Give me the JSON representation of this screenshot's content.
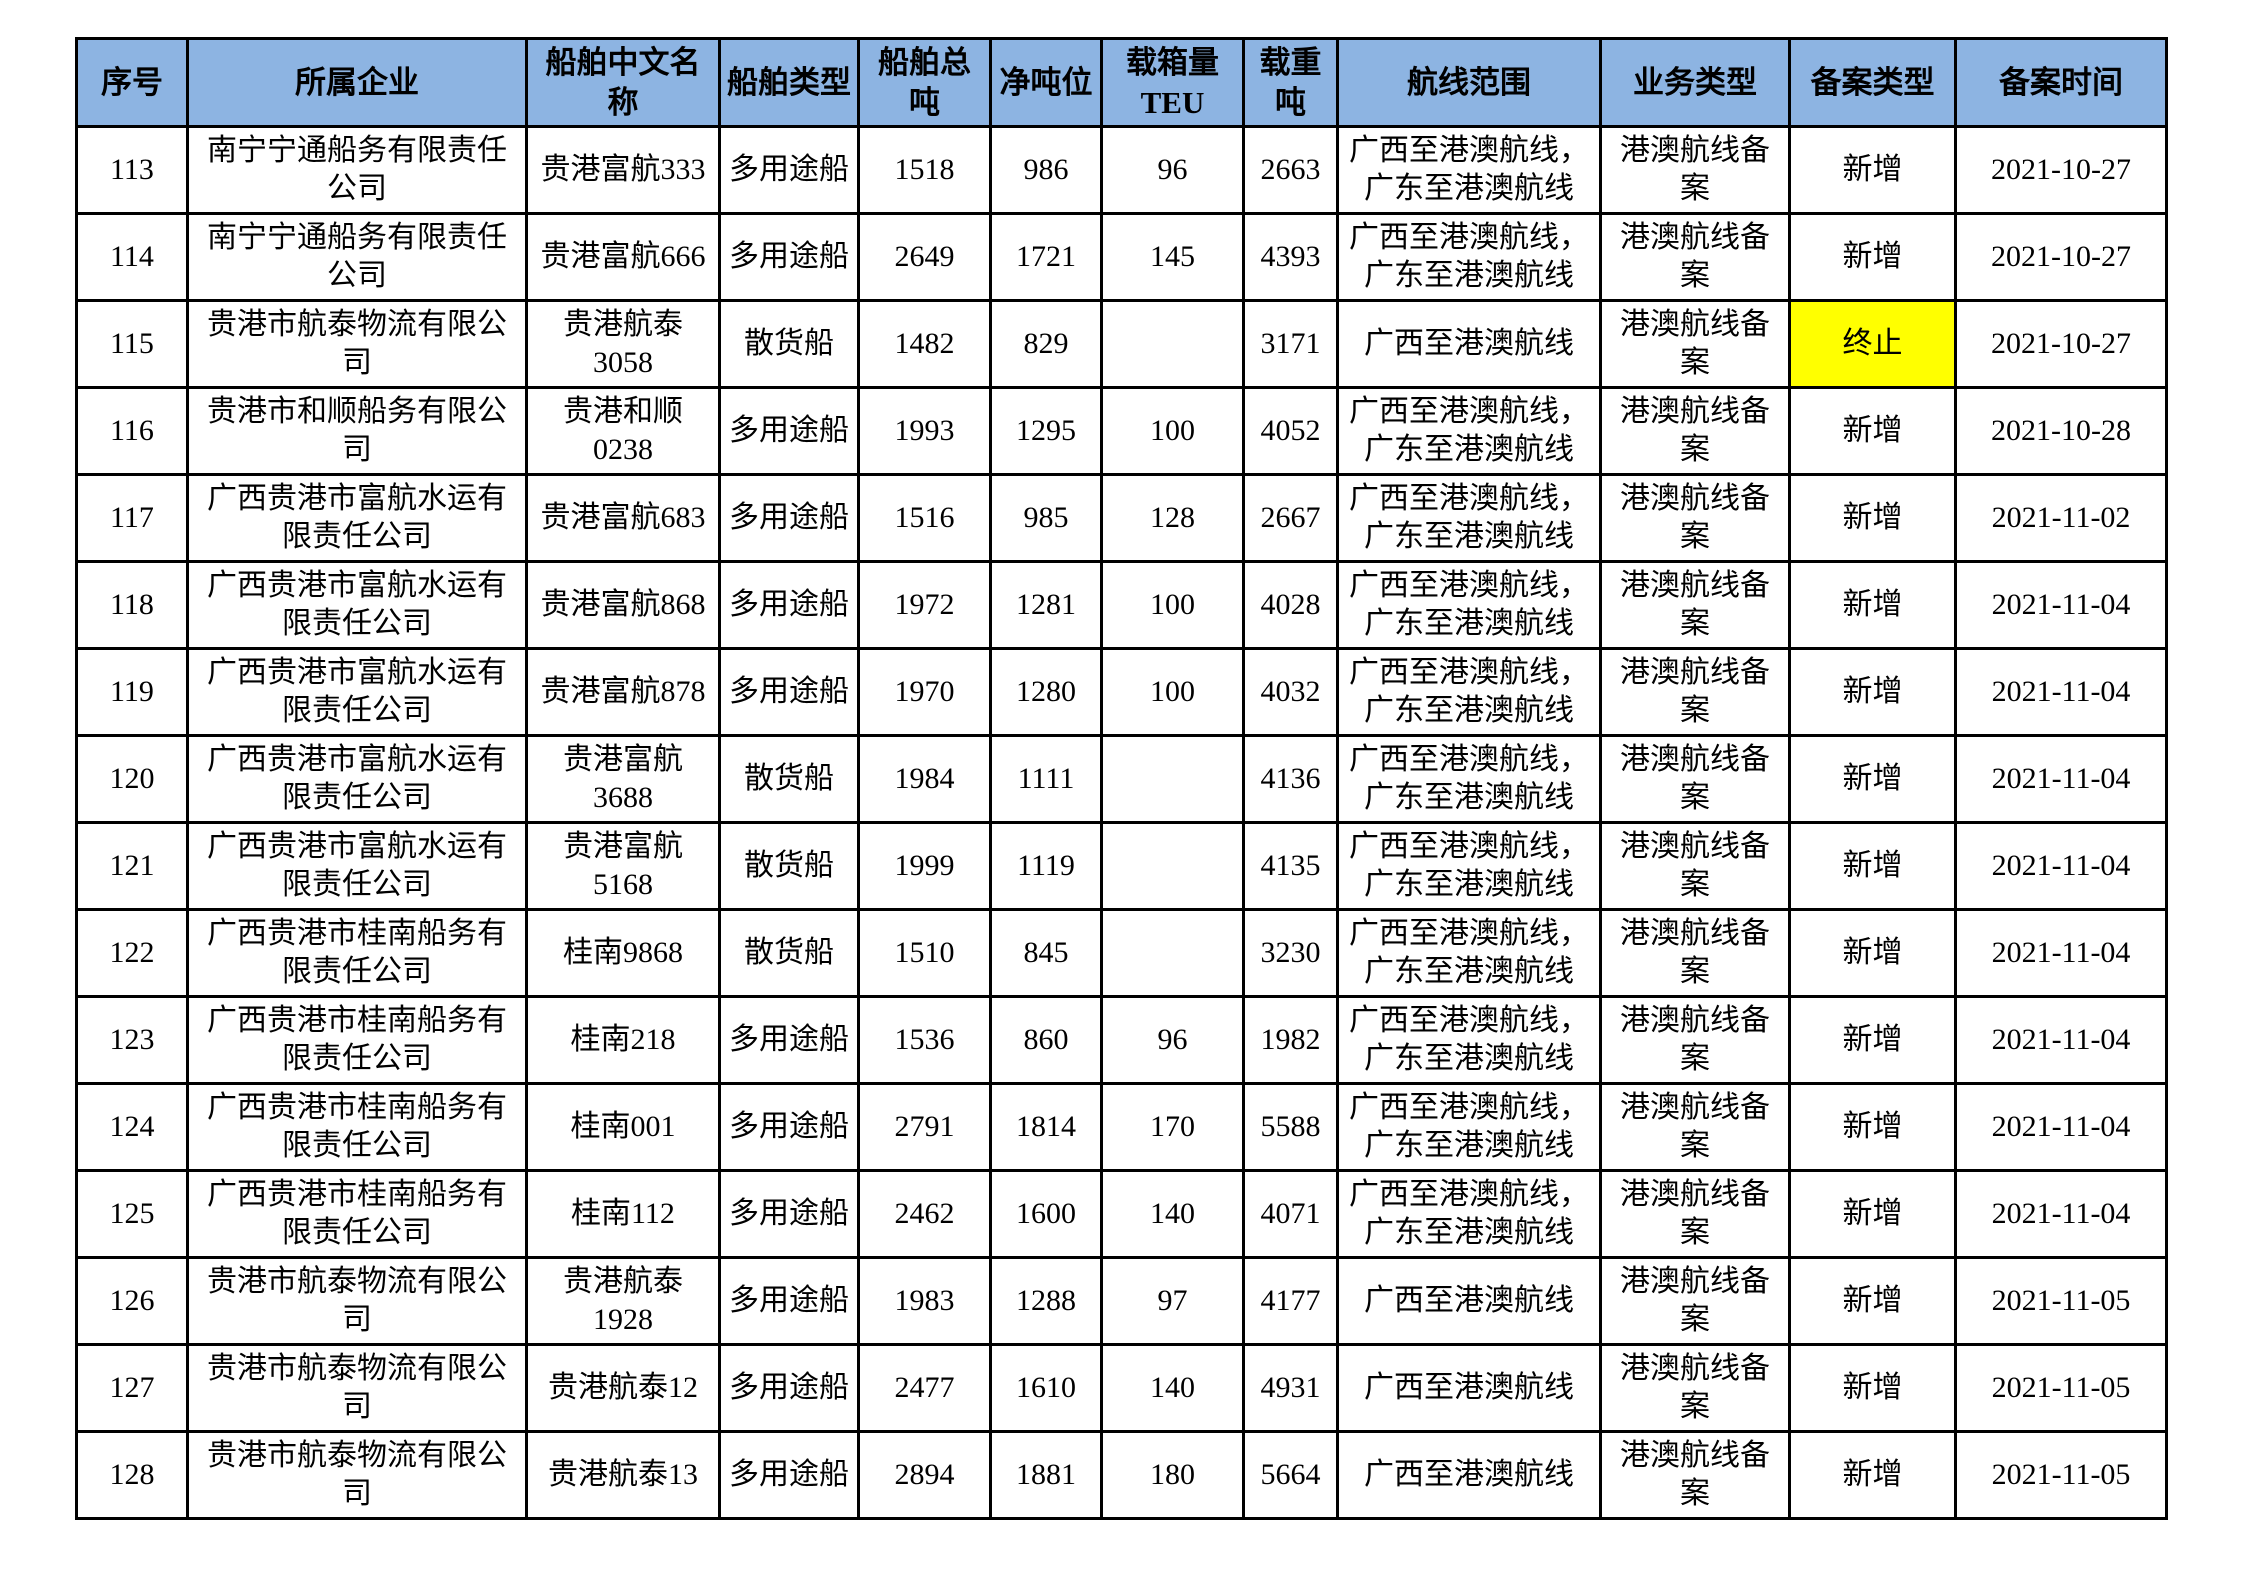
{
  "colors": {
    "header_bg": "#8DB4E2",
    "highlight_bg": "#FFFF00",
    "border": "#000000",
    "text": "#000000"
  },
  "table": {
    "columns": [
      {
        "key": "seq",
        "label": "序号"
      },
      {
        "key": "company",
        "label": "所属企业"
      },
      {
        "key": "ship_name",
        "label": "船舶中文名称"
      },
      {
        "key": "ship_type",
        "label": "船舶类型"
      },
      {
        "key": "gross_tonnage",
        "label": "船舶总吨"
      },
      {
        "key": "net_tonnage",
        "label": "净吨位"
      },
      {
        "key": "teu",
        "label": "载箱量TEU"
      },
      {
        "key": "dwt",
        "label": "载重吨"
      },
      {
        "key": "route",
        "label": "航线范围"
      },
      {
        "key": "business_type",
        "label": "业务类型"
      },
      {
        "key": "filing_type",
        "label": "备案类型"
      },
      {
        "key": "filing_date",
        "label": "备案时间"
      }
    ],
    "rows": [
      {
        "seq": "113",
        "company": "南宁宁通船务有限责任公司",
        "ship_name": "贵港富航333",
        "ship_type": "多用途船",
        "gross_tonnage": "1518",
        "net_tonnage": "986",
        "teu": "96",
        "dwt": "2663",
        "route": "广西至港澳航线，\n广东至港澳航线",
        "business_type": "港澳航线备案",
        "filing_type": "新增",
        "filing_type_highlight": false,
        "filing_date": "2021-10-27"
      },
      {
        "seq": "114",
        "company": "南宁宁通船务有限责任公司",
        "ship_name": "贵港富航666",
        "ship_type": "多用途船",
        "gross_tonnage": "2649",
        "net_tonnage": "1721",
        "teu": "145",
        "dwt": "4393",
        "route": "广西至港澳航线，\n广东至港澳航线",
        "business_type": "港澳航线备案",
        "filing_type": "新增",
        "filing_type_highlight": false,
        "filing_date": "2021-10-27"
      },
      {
        "seq": "115",
        "company": "贵港市航泰物流有限公司",
        "ship_name": "贵港航泰3058",
        "ship_type": "散货船",
        "gross_tonnage": "1482",
        "net_tonnage": "829",
        "teu": "",
        "dwt": "3171",
        "route": "广西至港澳航线",
        "business_type": "港澳航线备案",
        "filing_type": "终止",
        "filing_type_highlight": true,
        "filing_date": "2021-10-27"
      },
      {
        "seq": "116",
        "company": "贵港市和顺船务有限公司",
        "ship_name": "贵港和顺0238",
        "ship_type": "多用途船",
        "gross_tonnage": "1993",
        "net_tonnage": "1295",
        "teu": "100",
        "dwt": "4052",
        "route": "广西至港澳航线，\n广东至港澳航线",
        "business_type": "港澳航线备案",
        "filing_type": "新增",
        "filing_type_highlight": false,
        "filing_date": "2021-10-28"
      },
      {
        "seq": "117",
        "company": "广西贵港市富航水运有限责任公司",
        "ship_name": "贵港富航683",
        "ship_type": "多用途船",
        "gross_tonnage": "1516",
        "net_tonnage": "985",
        "teu": "128",
        "dwt": "2667",
        "route": "广西至港澳航线，\n广东至港澳航线",
        "business_type": "港澳航线备案",
        "filing_type": "新增",
        "filing_type_highlight": false,
        "filing_date": "2021-11-02"
      },
      {
        "seq": "118",
        "company": "广西贵港市富航水运有限责任公司",
        "ship_name": "贵港富航868",
        "ship_type": "多用途船",
        "gross_tonnage": "1972",
        "net_tonnage": "1281",
        "teu": "100",
        "dwt": "4028",
        "route": "广西至港澳航线，\n广东至港澳航线",
        "business_type": "港澳航线备案",
        "filing_type": "新增",
        "filing_type_highlight": false,
        "filing_date": "2021-11-04"
      },
      {
        "seq": "119",
        "company": "广西贵港市富航水运有限责任公司",
        "ship_name": "贵港富航878",
        "ship_type": "多用途船",
        "gross_tonnage": "1970",
        "net_tonnage": "1280",
        "teu": "100",
        "dwt": "4032",
        "route": "广西至港澳航线，\n广东至港澳航线",
        "business_type": "港澳航线备案",
        "filing_type": "新增",
        "filing_type_highlight": false,
        "filing_date": "2021-11-04"
      },
      {
        "seq": "120",
        "company": "广西贵港市富航水运有限责任公司",
        "ship_name": "贵港富航3688",
        "ship_type": "散货船",
        "gross_tonnage": "1984",
        "net_tonnage": "1111",
        "teu": "",
        "dwt": "4136",
        "route": "广西至港澳航线，\n广东至港澳航线",
        "business_type": "港澳航线备案",
        "filing_type": "新增",
        "filing_type_highlight": false,
        "filing_date": "2021-11-04"
      },
      {
        "seq": "121",
        "company": "广西贵港市富航水运有限责任公司",
        "ship_name": "贵港富航5168",
        "ship_type": "散货船",
        "gross_tonnage": "1999",
        "net_tonnage": "1119",
        "teu": "",
        "dwt": "4135",
        "route": "广西至港澳航线，\n广东至港澳航线",
        "business_type": "港澳航线备案",
        "filing_type": "新增",
        "filing_type_highlight": false,
        "filing_date": "2021-11-04"
      },
      {
        "seq": "122",
        "company": "广西贵港市桂南船务有限责任公司",
        "ship_name": "桂南9868",
        "ship_type": "散货船",
        "gross_tonnage": "1510",
        "net_tonnage": "845",
        "teu": "",
        "dwt": "3230",
        "route": "广西至港澳航线，\n广东至港澳航线",
        "business_type": "港澳航线备案",
        "filing_type": "新增",
        "filing_type_highlight": false,
        "filing_date": "2021-11-04"
      },
      {
        "seq": "123",
        "company": "广西贵港市桂南船务有限责任公司",
        "ship_name": "桂南218",
        "ship_type": "多用途船",
        "gross_tonnage": "1536",
        "net_tonnage": "860",
        "teu": "96",
        "dwt": "1982",
        "route": "广西至港澳航线，\n广东至港澳航线",
        "business_type": "港澳航线备案",
        "filing_type": "新增",
        "filing_type_highlight": false,
        "filing_date": "2021-11-04"
      },
      {
        "seq": "124",
        "company": "广西贵港市桂南船务有限责任公司",
        "ship_name": "桂南001",
        "ship_type": "多用途船",
        "gross_tonnage": "2791",
        "net_tonnage": "1814",
        "teu": "170",
        "dwt": "5588",
        "route": "广西至港澳航线，\n广东至港澳航线",
        "business_type": "港澳航线备案",
        "filing_type": "新增",
        "filing_type_highlight": false,
        "filing_date": "2021-11-04"
      },
      {
        "seq": "125",
        "company": "广西贵港市桂南船务有限责任公司",
        "ship_name": "桂南112",
        "ship_type": "多用途船",
        "gross_tonnage": "2462",
        "net_tonnage": "1600",
        "teu": "140",
        "dwt": "4071",
        "route": "广西至港澳航线，\n广东至港澳航线",
        "business_type": "港澳航线备案",
        "filing_type": "新增",
        "filing_type_highlight": false,
        "filing_date": "2021-11-04"
      },
      {
        "seq": "126",
        "company": "贵港市航泰物流有限公司",
        "ship_name": "贵港航泰1928",
        "ship_type": "多用途船",
        "gross_tonnage": "1983",
        "net_tonnage": "1288",
        "teu": "97",
        "dwt": "4177",
        "route": "广西至港澳航线",
        "business_type": "港澳航线备案",
        "filing_type": "新增",
        "filing_type_highlight": false,
        "filing_date": "2021-11-05"
      },
      {
        "seq": "127",
        "company": "贵港市航泰物流有限公司",
        "ship_name": "贵港航泰12",
        "ship_type": "多用途船",
        "gross_tonnage": "2477",
        "net_tonnage": "1610",
        "teu": "140",
        "dwt": "4931",
        "route": "广西至港澳航线",
        "business_type": "港澳航线备案",
        "filing_type": "新增",
        "filing_type_highlight": false,
        "filing_date": "2021-11-05"
      },
      {
        "seq": "128",
        "company": "贵港市航泰物流有限公司",
        "ship_name": "贵港航泰13",
        "ship_type": "多用途船",
        "gross_tonnage": "2894",
        "net_tonnage": "1881",
        "teu": "180",
        "dwt": "5664",
        "route": "广西至港澳航线",
        "business_type": "港澳航线备案",
        "filing_type": "新增",
        "filing_type_highlight": false,
        "filing_date": "2021-11-05"
      }
    ]
  }
}
